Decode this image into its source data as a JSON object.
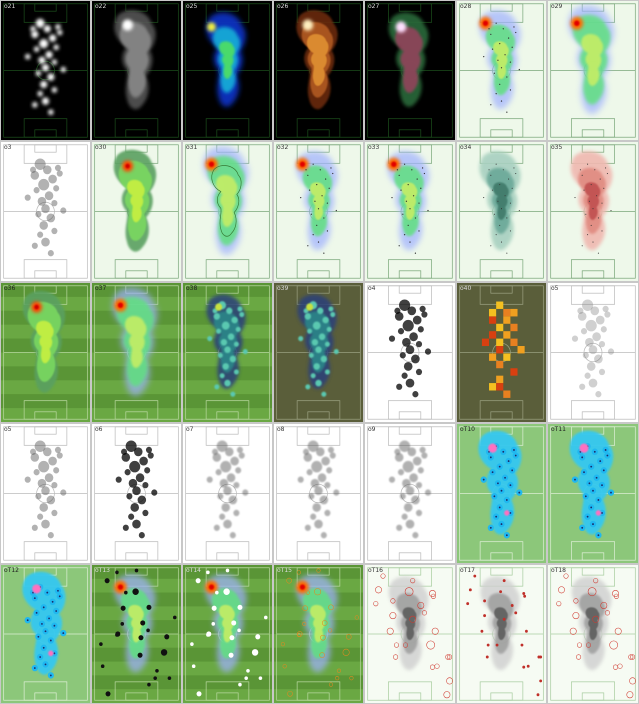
{
  "tiles": [
    {
      "label": "o21",
      "style": "blur-white",
      "bg": "#000000",
      "line": "#1b4d1b",
      "labelColor": "#dddddd"
    },
    {
      "label": "o22",
      "style": "contour-gray",
      "bg": "#000000",
      "line": "#1b4d1b",
      "labelColor": "#dddddd"
    },
    {
      "label": "o25",
      "style": "jet",
      "bg": "#000000",
      "line": "#1b4d1b",
      "labelColor": "#dddddd"
    },
    {
      "label": "o26",
      "style": "hot-contour",
      "bg": "#000000",
      "line": "#1b4d1b",
      "labelColor": "#dddddd"
    },
    {
      "label": "o27",
      "style": "hot-green",
      "bg": "#000000",
      "line": "#1b4d1b",
      "labelColor": "#dddddd"
    },
    {
      "label": "o28",
      "style": "jet-points",
      "bg": "#eef8ea",
      "line": "#7aa77a",
      "labelColor": "#333333"
    },
    {
      "label": "o29",
      "style": "jet-wide",
      "bg": "#eef8ea",
      "line": "#7aa77a",
      "labelColor": "#333333"
    },
    {
      "label": "o3",
      "style": "dots-gray",
      "bg": "#ffffff",
      "line": "#bbbbbb",
      "labelColor": "#333333"
    },
    {
      "label": "o30",
      "style": "green-contour",
      "bg": "#eef8ea",
      "line": "#7aa77a",
      "labelColor": "#333333"
    },
    {
      "label": "o31",
      "style": "jet-contour",
      "bg": "#eef8ea",
      "line": "#7aa77a",
      "labelColor": "#333333"
    },
    {
      "label": "o32",
      "style": "jet-blue",
      "bg": "#eef8ea",
      "line": "#7aa77a",
      "labelColor": "#333333"
    },
    {
      "label": "o33",
      "style": "jet-blue2",
      "bg": "#eef8ea",
      "line": "#7aa77a",
      "labelColor": "#333333"
    },
    {
      "label": "o34",
      "style": "teal-kde",
      "bg": "#eef8ea",
      "line": "#7aa77a",
      "labelColor": "#333333"
    },
    {
      "label": "o35",
      "style": "pink-kde",
      "bg": "#eef8ea",
      "line": "#7aa77a",
      "labelColor": "#333333"
    },
    {
      "label": "o36",
      "style": "green-contour",
      "bg": "#5f9a3a",
      "line": "#b9d8a0",
      "labelColor": "#222222",
      "stripes": true
    },
    {
      "label": "o37",
      "style": "jet-wide",
      "bg": "#5f9a3a",
      "line": "#b9d8a0",
      "labelColor": "#222222",
      "stripes": true
    },
    {
      "label": "o38",
      "style": "viridis",
      "bg": "#5f9a3a",
      "line": "#b9d8a0",
      "labelColor": "#222222",
      "stripes": true
    },
    {
      "label": "o39",
      "style": "viridis-dark",
      "bg": "#5a5e3a",
      "line": "#9aa080",
      "labelColor": "#dddddd"
    },
    {
      "label": "o4",
      "style": "dots-black",
      "bg": "#ffffff",
      "line": "#bbbbbb",
      "labelColor": "#333333"
    },
    {
      "label": "o40",
      "style": "hexbin",
      "bg": "#5a5e3a",
      "line": "#9aa080",
      "labelColor": "#dddddd"
    },
    {
      "label": "o5",
      "style": "dots-light",
      "bg": "#ffffff",
      "line": "#bbbbbb",
      "labelColor": "#333333"
    },
    {
      "label": "o5",
      "style": "dots-gray",
      "bg": "#ffffff",
      "line": "#bbbbbb",
      "labelColor": "#333333"
    },
    {
      "label": "o6",
      "style": "dots-black",
      "bg": "#ffffff",
      "line": "#bbbbbb",
      "labelColor": "#333333"
    },
    {
      "label": "o7",
      "style": "dots-blur",
      "bg": "#ffffff",
      "line": "#bbbbbb",
      "labelColor": "#333333"
    },
    {
      "label": "o8",
      "style": "dots-blur",
      "bg": "#ffffff",
      "line": "#bbbbbb",
      "labelColor": "#333333"
    },
    {
      "label": "o9",
      "style": "dots-blur",
      "bg": "#ffffff",
      "line": "#bbbbbb",
      "labelColor": "#333333"
    },
    {
      "label": "oT10",
      "style": "cyan-blob",
      "bg": "#8cc77a",
      "line": "#ddeed5",
      "labelColor": "#222222"
    },
    {
      "label": "oT11",
      "style": "cyan-blob",
      "bg": "#8cc77a",
      "line": "#ddeed5",
      "labelColor": "#222222"
    },
    {
      "label": "oT12",
      "style": "cyan-blob",
      "bg": "#8cc77a",
      "line": "#ddeed5",
      "labelColor": "#222222"
    },
    {
      "label": "oT13",
      "style": "jet-markers-black",
      "bg": "#5f9a3a",
      "line": "#b9d8a0",
      "labelColor": "#dddddd",
      "stripes": true
    },
    {
      "label": "oT14",
      "style": "jet-markers-white",
      "bg": "#5f9a3a",
      "line": "#b9d8a0",
      "labelColor": "#dddddd",
      "stripes": true
    },
    {
      "label": "oT15",
      "style": "jet-markers-orange",
      "bg": "#5f9a3a",
      "line": "#b9d8a0",
      "labelColor": "#dddddd",
      "stripes": true
    },
    {
      "label": "oT16",
      "style": "gray-rings",
      "bg": "#f6fbf3",
      "line": "#a8cda0",
      "labelColor": "#333333"
    },
    {
      "label": "oT17",
      "style": "gray-reddots",
      "bg": "#f6fbf3",
      "line": "#a8cda0",
      "labelColor": "#333333"
    },
    {
      "label": "oT18",
      "style": "gray-redrings",
      "bg": "#f6fbf3",
      "line": "#a8cda0",
      "labelColor": "#333333"
    }
  ]
}
